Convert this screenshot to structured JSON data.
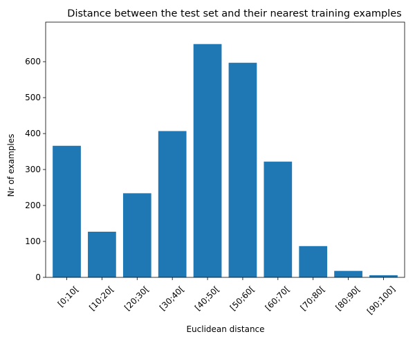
{
  "chart_data": {
    "type": "bar",
    "title": "Distance between the test set and their nearest training examples",
    "xlabel": "Euclidean distance",
    "ylabel": "Nr of examples",
    "categories": [
      "[0;10[",
      "[10;20[",
      "[20;30[",
      "[30;40[",
      "[40;50[",
      "[50;60[",
      "[60;70[",
      "[70;80[",
      "[80;90[",
      "[90;100]"
    ],
    "values": [
      366,
      127,
      234,
      407,
      649,
      597,
      322,
      87,
      18,
      6
    ],
    "ylim": [
      0,
      710
    ],
    "yticks": [
      0,
      100,
      200,
      300,
      400,
      500,
      600
    ],
    "bar_color": "#1f77b4",
    "grid": false,
    "legend": false
  }
}
